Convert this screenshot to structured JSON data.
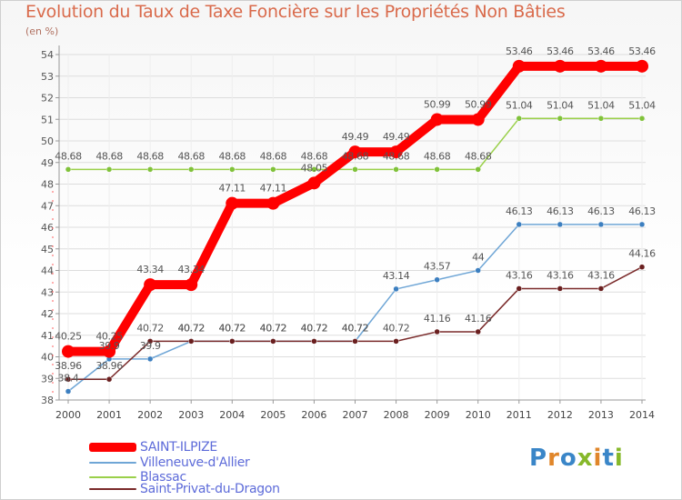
{
  "header": {
    "title": "Evolution du Taux de Taxe Foncière sur les Propriétés Non Bâties",
    "unit": "(en %)"
  },
  "logo": {
    "text": "Proxiti"
  },
  "colors": {
    "axis": "#999999",
    "grid": "#dddddd",
    "label": "#555555"
  },
  "chart_data": {
    "type": "line",
    "title": "Evolution du Taux de Taxe Foncière sur les Propriétés Non Bâties",
    "ylabel": "(en %)",
    "xlabel": "",
    "x": [
      "2000",
      "2001",
      "2002",
      "2003",
      "2004",
      "2005",
      "2006",
      "2007",
      "2008",
      "2009",
      "2010",
      "2011",
      "2012",
      "2013",
      "2014"
    ],
    "ylim": [
      38,
      54
    ],
    "yticks": [
      "38",
      "39",
      "40",
      "41",
      "42",
      "43",
      "44",
      "45",
      "46",
      "47",
      "48",
      "49",
      "50",
      "51",
      "52",
      "53",
      "54"
    ],
    "legend_position": "bottom-left",
    "series": [
      {
        "name": "SAINT-ILPIZE",
        "color": "#ff0000",
        "line_width": 10,
        "marker_color": "#ff0000",
        "values": [
          40.25,
          40.25,
          43.34,
          43.34,
          47.11,
          47.11,
          48.05,
          49.49,
          49.49,
          50.99,
          50.99,
          53.46,
          53.46,
          53.46,
          53.46
        ],
        "labels": [
          "40.25",
          "40.25",
          "43.34",
          "43.34",
          "47.11",
          "47.11",
          "48.05",
          "49.49",
          "49.49",
          "50.99",
          "50.99",
          "53.46",
          "53.46",
          "53.46",
          "53.46"
        ]
      },
      {
        "name": "Villeneuve-d'Allier",
        "color": "#6fa6d6",
        "line_width": 1.5,
        "marker_color": "#3c7fc0",
        "values": [
          38.4,
          39.9,
          39.9,
          40.72,
          40.72,
          40.72,
          40.72,
          40.72,
          43.14,
          43.57,
          44,
          46.13,
          46.13,
          46.13,
          46.13
        ],
        "labels": [
          "38.4",
          "39.9",
          "39.9",
          "40.72",
          "40.72",
          "40.72",
          "40.72",
          "40.72",
          "43.14",
          "43.57",
          "44",
          "46.13",
          "46.13",
          "46.13",
          "46.13"
        ]
      },
      {
        "name": "Blassac",
        "color": "#9ad04a",
        "line_width": 1.5,
        "marker_color": "#80c23a",
        "values": [
          48.68,
          48.68,
          48.68,
          48.68,
          48.68,
          48.68,
          48.68,
          48.68,
          48.68,
          48.68,
          48.68,
          51.04,
          51.04,
          51.04,
          51.04
        ],
        "labels": [
          "48.68",
          "48.68",
          "48.68",
          "48.68",
          "48.68",
          "48.68",
          "48.68",
          "48.68",
          "48.68",
          "48.68",
          "48.68",
          "51.04",
          "51.04",
          "51.04",
          "51.04"
        ]
      },
      {
        "name": "Saint-Privat-du-Dragon",
        "color": "#7a2a2a",
        "line_width": 1.5,
        "marker_color": "#6a1f1f",
        "values": [
          38.96,
          38.96,
          40.72,
          40.72,
          40.72,
          40.72,
          40.72,
          40.72,
          40.72,
          41.16,
          41.16,
          43.16,
          43.16,
          43.16,
          44.16
        ],
        "labels": [
          "38.96",
          "38.96",
          "40.72",
          "40.72",
          "40.72",
          "40.72",
          "40.72",
          "40.72",
          "40.72",
          "41.16",
          "41.16",
          "43.16",
          "43.16",
          "43.16",
          "44.16"
        ]
      }
    ]
  }
}
